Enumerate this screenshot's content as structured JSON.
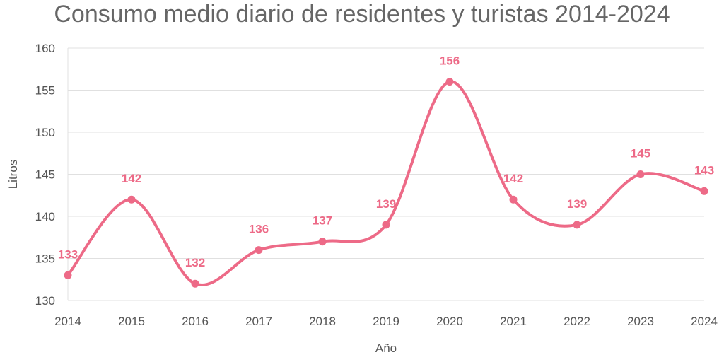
{
  "chart_data": {
    "type": "line",
    "title": "Consumo medio diario de residentes y turistas 2014-2024",
    "xlabel": "Año",
    "ylabel": "Litros",
    "categories": [
      "2014",
      "2015",
      "2016",
      "2017",
      "2018",
      "2019",
      "2020",
      "2021",
      "2022",
      "2023",
      "2024"
    ],
    "series": [
      {
        "values": [
          133,
          142,
          132,
          136,
          137,
          139,
          156,
          142,
          139,
          145,
          143
        ]
      }
    ],
    "ylim": [
      130,
      160
    ],
    "yticks": [
      "130",
      "135",
      "140",
      "145",
      "150",
      "155",
      "160"
    ],
    "line_style": "smooth",
    "data_labels": true,
    "grid": true,
    "legend": "none",
    "colors": {
      "series": "#ED6A87",
      "grid": "#E0E0E0",
      "text": "#555555",
      "title": "#666666"
    }
  }
}
